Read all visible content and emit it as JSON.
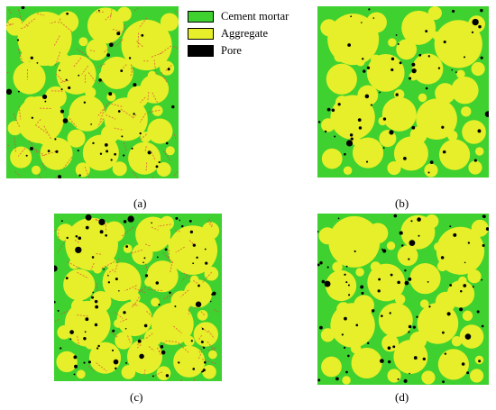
{
  "legend": {
    "items": [
      {
        "label": "Cement mortar",
        "color": "#3fd12f"
      },
      {
        "label": "Aggregate",
        "color": "#e6ef2a"
      },
      {
        "label": "Pore",
        "color": "#000000"
      }
    ]
  },
  "panels": [
    {
      "id": "a",
      "caption": "(a)"
    },
    {
      "id": "b",
      "caption": "(b)"
    },
    {
      "id": "c",
      "caption": "(c)"
    },
    {
      "id": "d",
      "caption": "(d)"
    }
  ],
  "colors": {
    "mortar": "#3fd12f",
    "aggregate": "#e6ef2a",
    "pore": "#000000",
    "interface_crack": "#e0463a"
  }
}
